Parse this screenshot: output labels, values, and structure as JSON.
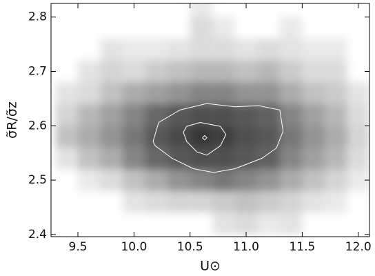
{
  "chart_data": {
    "type": "heatmap",
    "xlabel": "U⊙",
    "ylabel": "σ̃R/σ̃z",
    "xlim": [
      9.26,
      12.1
    ],
    "ylim": [
      2.396,
      2.825
    ],
    "xticks": [
      9.5,
      {
        "value": 10,
        "label": "10.0"
      },
      10.5,
      {
        "value": 11,
        "label": "11.0"
      },
      11.5,
      {
        "value": 12,
        "label": "12.0"
      }
    ],
    "yticks": [
      2.4,
      2.5,
      2.6,
      2.7,
      2.8
    ],
    "xbins": [
      9.3,
      9.5,
      9.7,
      9.9,
      10.1,
      10.3,
      10.5,
      10.7,
      10.9,
      11.1,
      11.3,
      11.5,
      11.7,
      11.9,
      12.1
    ],
    "ybins": [
      2.4,
      2.44,
      2.48,
      2.52,
      2.56,
      2.6,
      2.64,
      2.68,
      2.72,
      2.76,
      2.8,
      2.84
    ],
    "z": [
      [
        0,
        0,
        0,
        0,
        0,
        0,
        0,
        0.1,
        0.15,
        0.05,
        0.1,
        0,
        0,
        0
      ],
      [
        0,
        0,
        0,
        0.1,
        0.15,
        0.2,
        0.2,
        0.25,
        0.3,
        0.25,
        0.2,
        0.1,
        0.05,
        0
      ],
      [
        0,
        0.05,
        0.15,
        0.3,
        0.4,
        0.5,
        0.55,
        0.6,
        0.55,
        0.5,
        0.4,
        0.3,
        0.2,
        0.05
      ],
      [
        0.1,
        0.3,
        0.4,
        0.55,
        0.65,
        0.75,
        0.8,
        0.8,
        0.75,
        0.7,
        0.55,
        0.45,
        0.35,
        0.15
      ],
      [
        0.3,
        0.4,
        0.5,
        0.6,
        0.75,
        0.85,
        0.95,
        0.9,
        0.8,
        0.75,
        0.6,
        0.5,
        0.4,
        0.2
      ],
      [
        0.2,
        0.35,
        0.45,
        0.55,
        0.65,
        0.75,
        0.8,
        0.8,
        0.75,
        0.7,
        0.55,
        0.45,
        0.35,
        0.15
      ],
      [
        0.1,
        0.15,
        0.3,
        0.4,
        0.45,
        0.5,
        0.55,
        0.55,
        0.5,
        0.5,
        0.4,
        0.3,
        0.25,
        0.1
      ],
      [
        0,
        0.1,
        0.2,
        0.15,
        0.25,
        0.3,
        0.35,
        0.35,
        0.3,
        0.35,
        0.25,
        0.15,
        0.15,
        0
      ],
      [
        0,
        0,
        0.1,
        0.05,
        0.05,
        0.1,
        0.15,
        0.15,
        0.1,
        0.15,
        0.1,
        0.05,
        0.05,
        0
      ],
      [
        0,
        0,
        0,
        0,
        0,
        0,
        0.15,
        0.05,
        0,
        0,
        0.05,
        0,
        0,
        0
      ],
      [
        0,
        0,
        0,
        0,
        0,
        0,
        0.05,
        0,
        0,
        0,
        0,
        0,
        0,
        0
      ]
    ],
    "colors": [
      "#d0d0d0",
      "#303030"
    ],
    "contour_color": "#ffffff",
    "contours": [
      {
        "x": [
          10.17,
          10.22,
          10.41,
          10.65,
          10.9,
          11.11,
          11.3,
          11.33,
          11.27,
          11.14,
          10.9,
          10.71,
          10.53,
          10.34,
          10.19,
          10.17
        ],
        "y": [
          2.571,
          2.606,
          2.629,
          2.641,
          2.635,
          2.637,
          2.629,
          2.59,
          2.559,
          2.54,
          2.521,
          2.514,
          2.521,
          2.54,
          2.563,
          2.571
        ]
      },
      {
        "x": [
          10.44,
          10.47,
          10.59,
          10.77,
          10.82,
          10.77,
          10.65,
          10.56,
          10.47,
          10.44
        ],
        "y": [
          2.588,
          2.599,
          2.606,
          2.599,
          2.584,
          2.563,
          2.546,
          2.552,
          2.571,
          2.588
        ]
      },
      {
        "x": [
          10.61,
          10.63,
          10.65,
          10.63,
          10.61
        ],
        "y": [
          2.578,
          2.582,
          2.578,
          2.574,
          2.578
        ]
      }
    ]
  }
}
